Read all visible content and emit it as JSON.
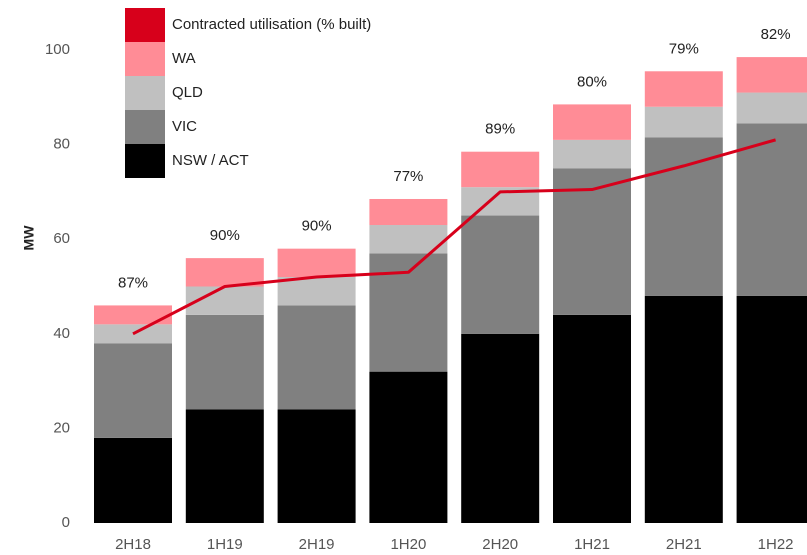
{
  "chart_data": {
    "type": "bar",
    "stacked": true,
    "y_label": "MW",
    "categories": [
      "2H18",
      "1H19",
      "2H19",
      "1H20",
      "2H20",
      "1H21",
      "2H21",
      "1H22"
    ],
    "series": [
      {
        "name": "NSW / ACT",
        "color": "#000000",
        "values": [
          18,
          24,
          24,
          32,
          40,
          44,
          48,
          48
        ]
      },
      {
        "name": "VIC",
        "color": "#808080",
        "values": [
          20,
          20,
          22,
          25,
          25,
          31,
          33.5,
          36.5
        ]
      },
      {
        "name": "QLD",
        "color": "#c0c0c0",
        "values": [
          4,
          6,
          6,
          6,
          6,
          6,
          6.5,
          6.5
        ]
      },
      {
        "name": "WA",
        "color": "#ff8c96",
        "values": [
          4,
          6,
          6,
          5.5,
          7.5,
          7.5,
          7.5,
          7.5
        ]
      },
      {
        "name": "Contracted utilisation (% built)",
        "type": "line",
        "color": "#d7001b",
        "values": [
          40,
          50,
          52,
          53,
          70,
          70.5,
          75.5,
          81
        ]
      }
    ],
    "annotations": [
      "87%",
      "90%",
      "90%",
      "77%",
      "89%",
      "80%",
      "79%",
      "82%"
    ],
    "ylim": [
      0,
      100
    ],
    "yticks": [
      0,
      20,
      40,
      60,
      80,
      100
    ],
    "grid": false
  }
}
